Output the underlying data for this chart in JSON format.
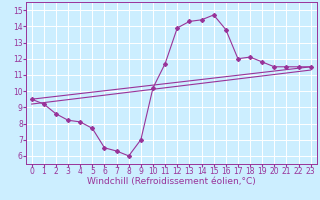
{
  "xlabel": "Windchill (Refroidissement éolien,°C)",
  "background_color": "#cceeff",
  "grid_color": "#ffffff",
  "line_color": "#993399",
  "xlim": [
    -0.5,
    23.5
  ],
  "ylim": [
    5.5,
    15.5
  ],
  "xticks": [
    0,
    1,
    2,
    3,
    4,
    5,
    6,
    7,
    8,
    9,
    10,
    11,
    12,
    13,
    14,
    15,
    16,
    17,
    18,
    19,
    20,
    21,
    22,
    23
  ],
  "yticks": [
    6,
    7,
    8,
    9,
    10,
    11,
    12,
    13,
    14,
    15
  ],
  "curve1_x": [
    0,
    1,
    2,
    3,
    4,
    5,
    6,
    7,
    8,
    9,
    10,
    11,
    12,
    13,
    14,
    15,
    16,
    17,
    18,
    19,
    20,
    21,
    22,
    23
  ],
  "curve1_y": [
    9.5,
    9.2,
    8.6,
    8.2,
    8.1,
    7.7,
    6.5,
    6.3,
    6.0,
    7.0,
    10.2,
    11.7,
    13.9,
    14.3,
    14.4,
    14.7,
    13.8,
    12.0,
    12.1,
    11.8,
    11.5,
    11.5,
    11.5,
    11.5
  ],
  "line1_x": [
    0,
    23
  ],
  "line1_y": [
    9.5,
    11.5
  ],
  "line2_x": [
    0,
    23
  ],
  "line2_y": [
    9.2,
    11.3
  ],
  "tick_fontsize": 5.5,
  "label_fontsize": 6.5
}
